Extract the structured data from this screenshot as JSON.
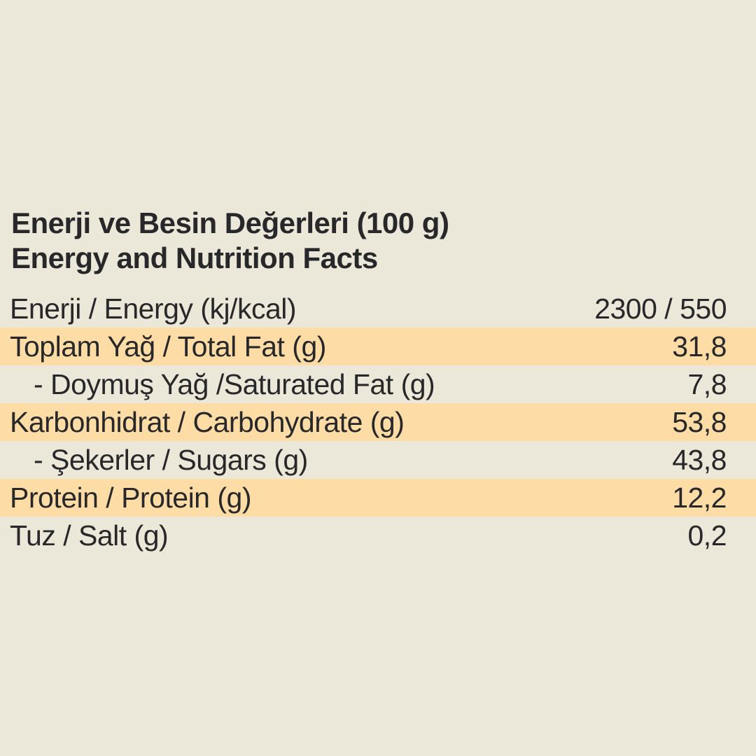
{
  "colors": {
    "background": "#ece8d9",
    "highlight": "#fedca6",
    "text": "#28282a"
  },
  "header": {
    "title_line1": "Enerji ve Besin Değerleri (100 g)",
    "title_line2": "Energy and Nutrition Facts"
  },
  "table": {
    "rows": [
      {
        "label": "Enerji / Energy (kj/kcal)",
        "value": "2300 / 550",
        "highlighted": false,
        "indent": false
      },
      {
        "label": "Toplam Yağ / Total Fat (g)",
        "value": "31,8",
        "highlighted": true,
        "indent": false
      },
      {
        "label": "- Doymuş Yağ /Saturated Fat (g)",
        "value": "7,8",
        "highlighted": false,
        "indent": true
      },
      {
        "label": "Karbonhidrat / Carbohydrate (g)",
        "value": "53,8",
        "highlighted": true,
        "indent": false
      },
      {
        "label": "- Şekerler / Sugars (g)",
        "value": "43,8",
        "highlighted": false,
        "indent": true
      },
      {
        "label": "Protein / Protein (g)",
        "value": "12,2",
        "highlighted": true,
        "indent": false
      },
      {
        "label": "Tuz / Salt (g)",
        "value": "0,2",
        "highlighted": false,
        "indent": false
      }
    ]
  }
}
